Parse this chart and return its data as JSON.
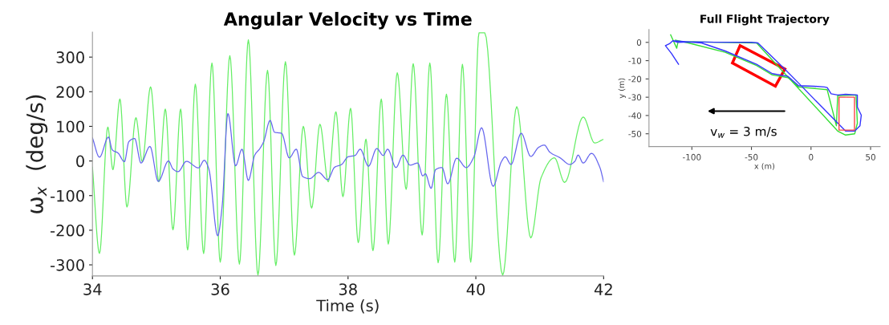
{
  "chart_data": [
    {
      "type": "line",
      "title": "Angular Velocity vs Time",
      "xlabel": "Time (s)",
      "ylabel": "ω$_{x}$  (deg/s)",
      "xlim": [
        34,
        42
      ],
      "xticks": [
        34,
        36,
        38,
        40,
        42
      ],
      "ylim": [
        -332,
        372
      ],
      "yticks": [
        -300,
        -200,
        -100,
        0,
        100,
        200,
        300
      ],
      "series": [
        {
          "color": "#66ee66",
          "x": [
            34.0,
            34.11,
            34.24,
            34.32,
            34.43,
            34.54,
            34.68,
            34.78,
            34.91,
            35.04,
            35.14,
            35.26,
            35.38,
            35.49,
            35.61,
            35.74,
            35.87,
            36.0,
            36.15,
            36.3,
            36.44,
            36.59,
            36.74,
            36.87,
            37.02,
            37.16,
            37.3,
            37.43,
            37.56,
            37.69,
            37.81,
            37.92,
            38.04,
            38.16,
            38.28,
            38.39,
            38.52,
            38.63,
            38.77,
            38.91,
            39.02,
            39.16,
            39.28,
            39.41,
            39.54,
            39.67,
            39.79,
            39.92,
            40.05,
            40.14,
            40.42,
            40.64,
            40.86,
            41.02,
            41.23,
            41.39,
            41.68,
            41.86,
            41.99
          ],
          "values": [
            -18,
            -267,
            98,
            -25,
            179,
            -133,
            125,
            -2,
            214,
            -60,
            150,
            -199,
            150,
            -257,
            222,
            -267,
            283,
            -292,
            304,
            -298,
            350,
            -330,
            262,
            -302,
            287,
            -272,
            100,
            -136,
            106,
            -60,
            142,
            -103,
            152,
            -236,
            63,
            -259,
            179,
            -240,
            255,
            -82,
            281,
            -214,
            283,
            -294,
            193,
            -292,
            279,
            -292,
            370,
            370,
            -330,
            157,
            -222,
            -49,
            9,
            -62,
            127,
            52,
            62
          ]
        },
        {
          "color": "#6666ee",
          "x": [
            34.0,
            34.11,
            34.25,
            34.31,
            34.4,
            34.5,
            34.57,
            34.66,
            34.76,
            34.9,
            35.03,
            35.19,
            35.26,
            35.34,
            35.47,
            35.66,
            35.75,
            35.82,
            35.96,
            36.03,
            36.12,
            36.24,
            36.34,
            36.44,
            36.54,
            36.62,
            36.68,
            36.78,
            36.85,
            36.96,
            37.08,
            37.19,
            37.29,
            37.4,
            37.54,
            37.68,
            37.79,
            37.9,
            38.0,
            38.11,
            38.19,
            38.32,
            38.45,
            38.55,
            38.62,
            38.75,
            38.86,
            38.97,
            39.09,
            39.17,
            39.21,
            39.3,
            39.37,
            39.47,
            39.56,
            39.7,
            39.85,
            39.97,
            40.09,
            40.27,
            40.4,
            40.46,
            40.55,
            40.71,
            40.86,
            40.98,
            41.07,
            41.16,
            41.32,
            41.47,
            41.55,
            41.6,
            41.68,
            41.81,
            41.94,
            42.0
          ],
          "values": [
            67,
            11,
            69,
            32,
            23,
            -2,
            56,
            65,
            -6,
            42,
            -59,
            0,
            -23,
            -31,
            -1,
            -20,
            2,
            -22,
            -216,
            -130,
            137,
            -14,
            34,
            -56,
            17,
            36,
            56,
            117,
            83,
            80,
            9,
            34,
            -45,
            -51,
            -33,
            -54,
            -18,
            -10,
            12,
            16,
            34,
            -15,
            36,
            16,
            34,
            -19,
            17,
            -12,
            -6,
            -43,
            -37,
            -79,
            -25,
            -19,
            -66,
            8,
            -19,
            12,
            96,
            -73,
            -2,
            12,
            -10,
            80,
            13,
            39,
            46,
            25,
            9,
            -10,
            -1,
            17,
            -6,
            22,
            -18,
            -60
          ]
        }
      ]
    },
    {
      "type": "line",
      "title": "Full Flight Trajectory",
      "xlabel": "x (m)",
      "ylabel": "y (m)",
      "xlim": [
        -136,
        58
      ],
      "xticks": [
        -100,
        -50,
        0,
        50
      ],
      "ylim": [
        -57,
        7
      ],
      "yticks": [
        -50,
        -40,
        -30,
        -20,
        -10,
        0
      ],
      "annotations": [
        "v$_{w}$ = 3 m/s"
      ],
      "series": [
        {
          "color": "#33dd33",
          "x": [
            -117.8,
            -112.7,
            -111.6,
            -80.9,
            -45.7,
            22.4,
            29.0,
            36.7,
            38.9,
            37.8,
            22.4,
            21.3,
            13.6,
            -10.5,
            -19.3,
            -32.5,
            -45.7,
            -72.1,
            -102.9,
            -113.8
          ],
          "values": [
            4.1,
            -3.2,
            0.4,
            0.1,
            -0.3,
            -48.5,
            -50.7,
            -50.0,
            -44.2,
            -28.8,
            -29.2,
            -45.6,
            -25.9,
            -24.4,
            -19.3,
            -17.8,
            -12.7,
            -5.4,
            -0.3,
            1.2
          ]
        },
        {
          "color": "#3333ff",
          "x": [
            -116.0,
            -111.6,
            -98.5,
            -80.9,
            -50.1,
            -44.6,
            -22.6,
            -10.5,
            4.8,
            20.2,
            29.0,
            36.7,
            41.1,
            42.2,
            38.9,
            38.9,
            29.0,
            22.4,
            16.9,
            13.6,
            11.4,
            2.7,
            -10.5,
            -19.3,
            -32.5,
            -45.7,
            -72.1,
            -91.9,
            -116.0,
            -118.7,
            -122.2,
            -117.1,
            -111.2
          ],
          "values": [
            0.9,
            0.0,
            0.3,
            0.1,
            0.0,
            -0.3,
            -14.2,
            -22.2,
            -32.5,
            -42.7,
            -48.5,
            -48.5,
            -45.6,
            -39.8,
            -35.4,
            -28.8,
            -28.4,
            -28.8,
            -28.1,
            -24.7,
            -24.4,
            -24.0,
            -23.7,
            -18.6,
            -17.1,
            -12.0,
            -4.7,
            -0.3,
            0.9,
            -0.7,
            -1.8,
            -6.1,
            -12.0
          ]
        },
        {
          "color": "#ff4444",
          "x": [
            30.0,
            36.5,
            36.5,
            23.5,
            23.5,
            29.0
          ],
          "values": [
            -30.0,
            -30.0,
            -48.0,
            -48.0,
            -30.0,
            -30.0
          ]
        }
      ]
    }
  ]
}
